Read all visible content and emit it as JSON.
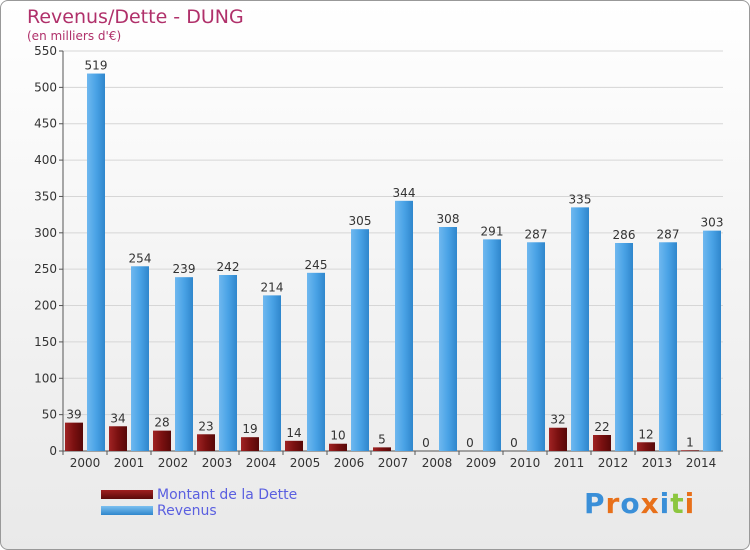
{
  "colors": {
    "debt": "#7a1010",
    "revenue": "#4aa3e6",
    "title": "#b0306a",
    "legend_text": "#5a5fe0"
  },
  "logo": {
    "text": "Proxiti"
  },
  "chart_data": {
    "type": "bar",
    "title": "Revenus/Dette - DUNG",
    "subtitle": "(en milliers d'€)",
    "xlabel": "",
    "ylabel": "",
    "ylim": [
      0,
      550
    ],
    "yticks": [
      0,
      50,
      100,
      150,
      200,
      250,
      300,
      350,
      400,
      450,
      500,
      550
    ],
    "grid": true,
    "legend_position": "bottom-left",
    "categories": [
      "2000",
      "2001",
      "2002",
      "2003",
      "2004",
      "2005",
      "2006",
      "2007",
      "2008",
      "2009",
      "2010",
      "2011",
      "2012",
      "2013",
      "2014"
    ],
    "series": [
      {
        "name": "Montant de la Dette",
        "values": [
          39,
          34,
          28,
          23,
          19,
          14,
          10,
          5,
          0,
          0,
          0,
          32,
          22,
          12,
          1
        ]
      },
      {
        "name": "Revenus",
        "values": [
          519,
          254,
          239,
          242,
          214,
          245,
          305,
          344,
          308,
          291,
          287,
          335,
          286,
          287,
          303
        ]
      }
    ]
  }
}
